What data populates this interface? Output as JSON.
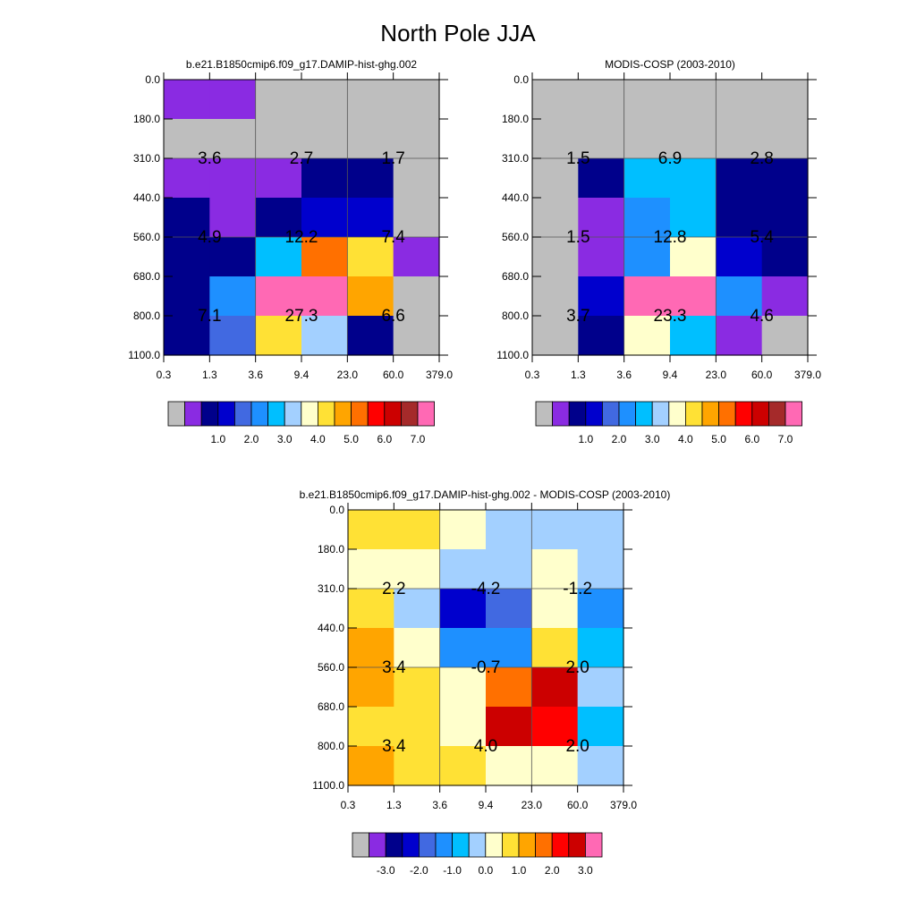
{
  "figure_title": "North Pole JJA",
  "colors": {
    "gray": "#BEBEBE",
    "purple": "#8A2BE2",
    "navy": "#00008B",
    "blue": "#0000CD",
    "royal": "#4169E1",
    "dodger": "#1E90FF",
    "deepsky": "#00BFFF",
    "lightblue": "#A3D0FF",
    "cream": "#FFFFCC",
    "gold": "#FFE135",
    "orange": "#FFA500",
    "darkorange": "#FF7000",
    "red": "#FF0000",
    "darkred": "#CC0000",
    "brown": "#A52A2A",
    "pink": "#FF69B4"
  },
  "colorbar_abs": {
    "colors": [
      "gray",
      "purple",
      "navy",
      "blue",
      "royal",
      "dodger",
      "deepsky",
      "lightblue",
      "cream",
      "gold",
      "orange",
      "darkorange",
      "red",
      "darkred",
      "brown",
      "pink"
    ],
    "labels": [
      "1.0",
      "2.0",
      "3.0",
      "4.0",
      "5.0",
      "6.0",
      "7.0"
    ],
    "label_boundaries": [
      3,
      5,
      7,
      9,
      11,
      13,
      15
    ]
  },
  "colorbar_diff": {
    "colors": [
      "gray",
      "purple",
      "navy",
      "blue",
      "royal",
      "dodger",
      "deepsky",
      "lightblue",
      "cream",
      "gold",
      "orange",
      "darkorange",
      "red",
      "darkred",
      "pink"
    ],
    "labels": [
      "-3.0",
      "-2.0",
      "-1.0",
      "0.0",
      "1.0",
      "2.0",
      "3.0"
    ],
    "label_boundaries": [
      2,
      4,
      6,
      8,
      10,
      12,
      14
    ]
  },
  "chart_data": [
    {
      "id": "model",
      "type": "heatmap",
      "title": "b.e21.B1850cmip6.f09_g17.DAMIP-hist-ghg.002",
      "x_tick_labels": [
        "0.3",
        "1.3",
        "3.6",
        "9.4",
        "23.0",
        "60.0",
        "379.0"
      ],
      "y_tick_labels": [
        "0.0",
        "180.0",
        "310.0",
        "440.0",
        "560.0",
        "680.0",
        "800.0",
        "1100.0"
      ],
      "cells": [
        [
          "purple",
          "purple",
          "gray",
          "gray",
          "gray",
          "gray"
        ],
        [
          "gray",
          "gray",
          "gray",
          "gray",
          "gray",
          "gray"
        ],
        [
          "purple",
          "purple",
          "purple",
          "navy",
          "navy",
          "gray"
        ],
        [
          "navy",
          "purple",
          "navy",
          "blue",
          "blue",
          "gray"
        ],
        [
          "navy",
          "navy",
          "deepsky",
          "darkorange",
          "gold",
          "purple"
        ],
        [
          "navy",
          "dodger",
          "pink",
          "pink",
          "orange",
          "gray"
        ],
        [
          "navy",
          "royal",
          "gold",
          "lightblue",
          "navy",
          "gray"
        ]
      ],
      "box_values": [
        [
          "3.6",
          "2.7",
          "1.7"
        ],
        [
          "4.9",
          "12.2",
          "7.4"
        ],
        [
          "7.1",
          "27.3",
          "6.6"
        ]
      ]
    },
    {
      "id": "obs",
      "type": "heatmap",
      "title": "MODIS-COSP (2003-2010)",
      "x_tick_labels": [
        "0.3",
        "1.3",
        "3.6",
        "9.4",
        "23.0",
        "60.0",
        "379.0"
      ],
      "y_tick_labels": [
        "0.0",
        "180.0",
        "310.0",
        "440.0",
        "560.0",
        "680.0",
        "800.0",
        "1100.0"
      ],
      "cells": [
        [
          "gray",
          "gray",
          "gray",
          "gray",
          "gray",
          "gray"
        ],
        [
          "gray",
          "gray",
          "gray",
          "gray",
          "gray",
          "gray"
        ],
        [
          "gray",
          "navy",
          "deepsky",
          "deepsky",
          "navy",
          "navy"
        ],
        [
          "gray",
          "purple",
          "dodger",
          "deepsky",
          "navy",
          "navy"
        ],
        [
          "gray",
          "purple",
          "dodger",
          "cream",
          "blue",
          "navy"
        ],
        [
          "gray",
          "blue",
          "pink",
          "pink",
          "dodger",
          "purple"
        ],
        [
          "gray",
          "navy",
          "cream",
          "deepsky",
          "purple",
          "gray"
        ]
      ],
      "box_values": [
        [
          "1.5",
          "6.9",
          "2.8"
        ],
        [
          "1.5",
          "12.8",
          "5.4"
        ],
        [
          "3.7",
          "23.3",
          "4.6"
        ]
      ]
    },
    {
      "id": "diff",
      "type": "heatmap",
      "title": "b.e21.B1850cmip6.f09_g17.DAMIP-hist-ghg.002 - MODIS-COSP (2003-2010)",
      "x_tick_labels": [
        "0.3",
        "1.3",
        "3.6",
        "9.4",
        "23.0",
        "60.0",
        "379.0"
      ],
      "y_tick_labels": [
        "0.0",
        "180.0",
        "310.0",
        "440.0",
        "560.0",
        "680.0",
        "800.0",
        "1100.0"
      ],
      "cells": [
        [
          "gold",
          "gold",
          "cream",
          "lightblue",
          "lightblue",
          "lightblue"
        ],
        [
          "cream",
          "cream",
          "lightblue",
          "lightblue",
          "cream",
          "lightblue"
        ],
        [
          "gold",
          "lightblue",
          "blue",
          "royal",
          "cream",
          "dodger"
        ],
        [
          "orange",
          "cream",
          "dodger",
          "dodger",
          "gold",
          "deepsky"
        ],
        [
          "orange",
          "gold",
          "cream",
          "darkorange",
          "darkred",
          "lightblue"
        ],
        [
          "gold",
          "gold",
          "cream",
          "darkred",
          "red",
          "deepsky"
        ],
        [
          "orange",
          "gold",
          "gold",
          "cream",
          "cream",
          "lightblue"
        ]
      ],
      "box_values": [
        [
          "2.2",
          "-4.2",
          "-1.2"
        ],
        [
          "3.4",
          "-0.7",
          "2.0"
        ],
        [
          "3.4",
          "4.0",
          "2.0"
        ]
      ]
    }
  ]
}
